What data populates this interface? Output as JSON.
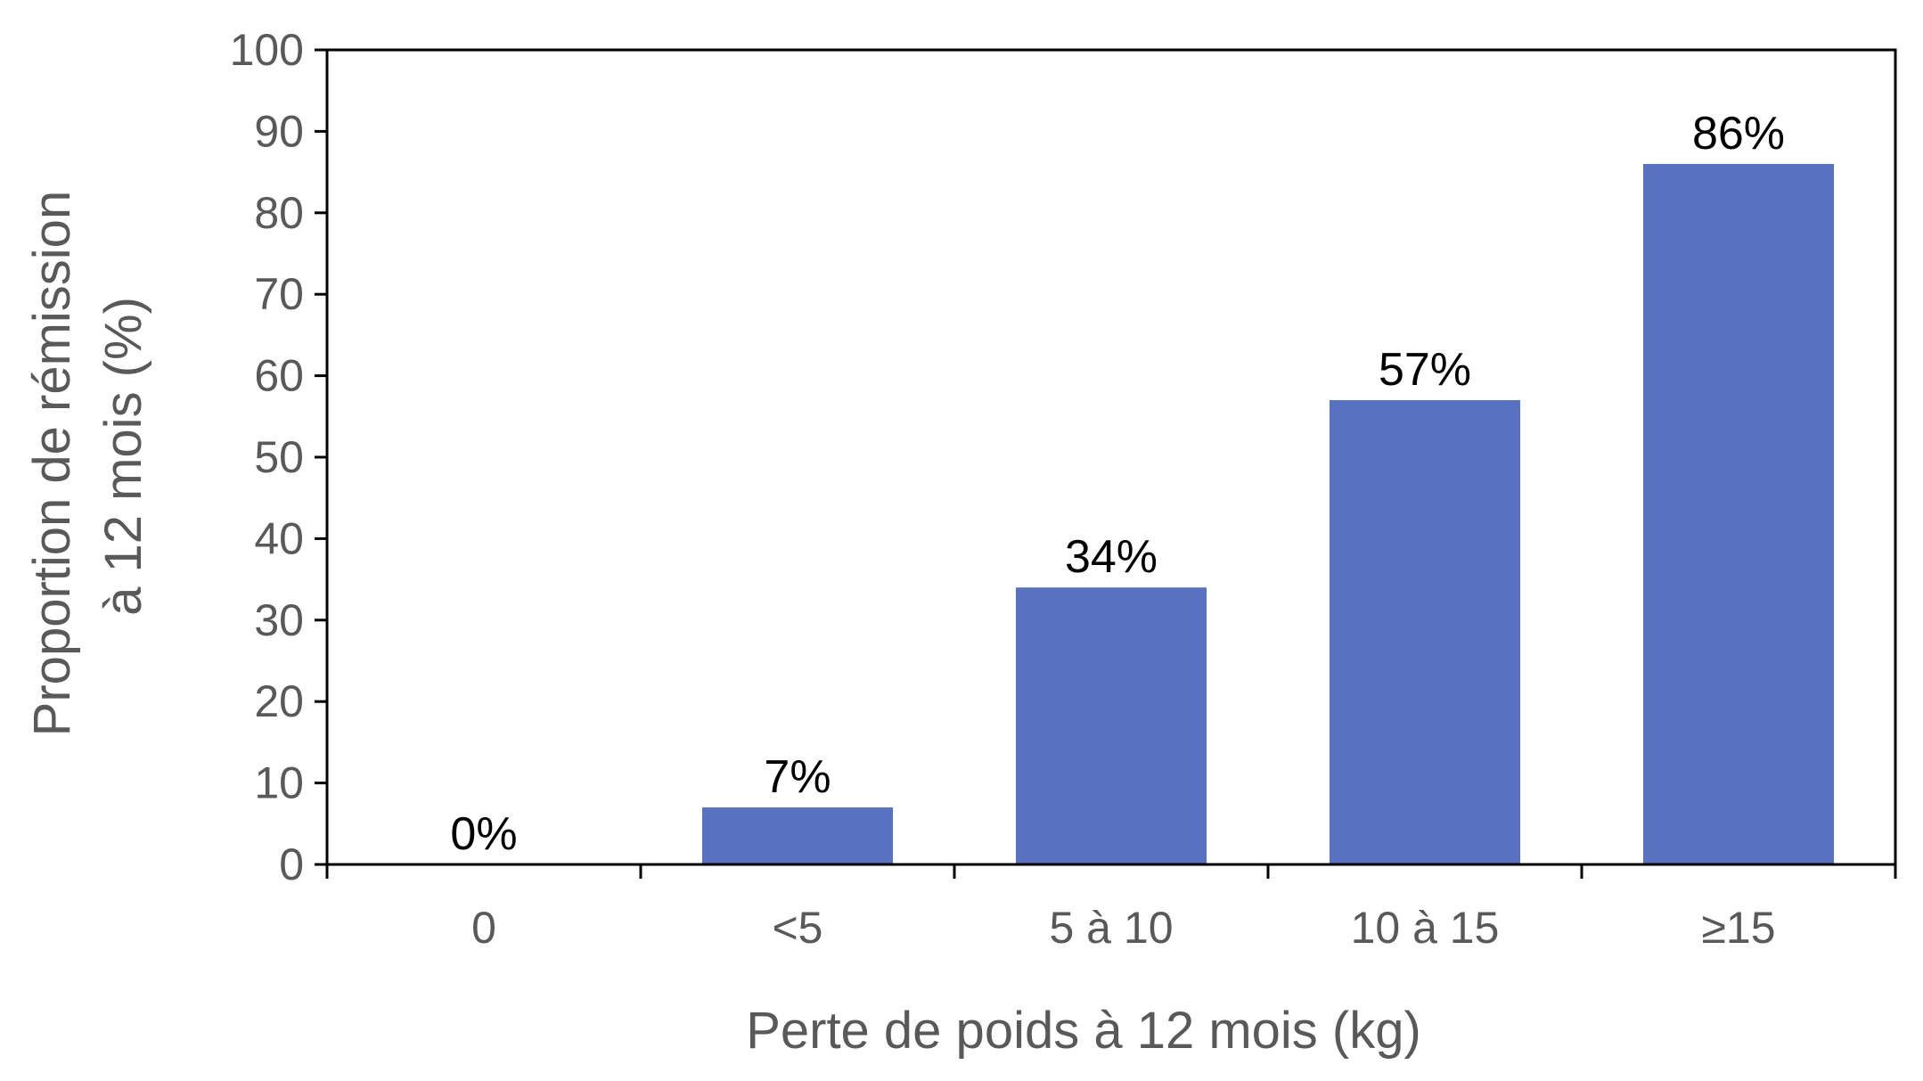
{
  "chart_data": {
    "type": "bar",
    "title": "",
    "xlabel": "Perte de poids à 12 mois (kg)",
    "ylabel_lines": [
      "Proportion de rémission",
      "à 12 mois (%)"
    ],
    "categories": [
      "0",
      "<5",
      "5 à 10",
      "10 à 15",
      "≥15"
    ],
    "values": [
      0,
      7,
      34,
      57,
      86
    ],
    "data_labels": [
      "0%",
      "7%",
      "34%",
      "57%",
      "86%"
    ],
    "ylim": [
      0,
      100
    ],
    "yticks": [
      0,
      10,
      20,
      30,
      40,
      50,
      60,
      70,
      80,
      90,
      100
    ],
    "ytick_labels": [
      "0",
      "10",
      "20",
      "30",
      "40",
      "50",
      "60",
      "70",
      "80",
      "90",
      "100"
    ],
    "grid": false,
    "legend": "none",
    "colors": {
      "bar": "#5672C0",
      "axis": "#000000",
      "tick_text": "#595959",
      "data_label_text": "#000000"
    }
  }
}
